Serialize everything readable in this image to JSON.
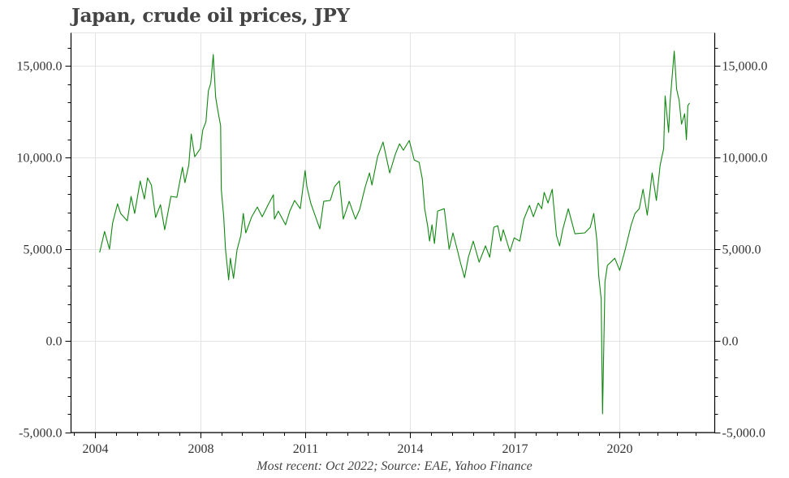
{
  "chart_data": {
    "type": "line",
    "title": "Japan, crude oil prices, JPY",
    "caption": "Most recent: Oct 2022; Source: EAE, Yahoo Finance",
    "xlabel": "",
    "ylabel": "",
    "xlim": [
      2004.3,
      2022.72
    ],
    "ylim": [
      -5000,
      16800
    ],
    "grid": true,
    "legend": "none",
    "line_color": "#118811",
    "x_ticks": [
      {
        "value": 2004.98,
        "label": "2004"
      },
      {
        "value": 2008.0,
        "label": "2008"
      },
      {
        "value": 2011.0,
        "label": "2011"
      },
      {
        "value": 2014.0,
        "label": "2014"
      },
      {
        "value": 2017.0,
        "label": "2017"
      },
      {
        "value": 2020.0,
        "label": "2020"
      }
    ],
    "y_ticks": [
      {
        "value": -5000,
        "label": "-5,000.0"
      },
      {
        "value": 0,
        "label": "0.0"
      },
      {
        "value": 5000,
        "label": "5,000.0"
      },
      {
        "value": 10000,
        "label": "10,000.0"
      },
      {
        "value": 15000,
        "label": "15,000.0"
      }
    ],
    "series": [
      {
        "name": "Crude oil price (JPY)",
        "x": [
          2005.12,
          2005.26,
          2005.4,
          2005.49,
          2005.63,
          2005.72,
          2005.91,
          2006.02,
          2006.12,
          2006.28,
          2006.4,
          2006.49,
          2006.6,
          2006.72,
          2006.86,
          2006.98,
          2007.16,
          2007.33,
          2007.49,
          2007.56,
          2007.67,
          2007.74,
          2007.84,
          2008.0,
          2008.07,
          2008.16,
          2008.23,
          2008.3,
          2008.37,
          2008.44,
          2008.51,
          2008.58,
          2008.6,
          2008.67,
          2008.72,
          2008.81,
          2008.86,
          2008.95,
          2009.05,
          2009.16,
          2009.23,
          2009.3,
          2009.47,
          2009.63,
          2009.77,
          2009.93,
          2010.09,
          2010.12,
          2010.23,
          2010.44,
          2010.56,
          2010.7,
          2010.86,
          2011.0,
          2011.05,
          2011.16,
          2011.42,
          2011.53,
          2011.72,
          2011.84,
          2011.98,
          2012.09,
          2012.26,
          2012.44,
          2012.56,
          2012.72,
          2012.84,
          2012.91,
          2013.07,
          2013.23,
          2013.42,
          2013.58,
          2013.7,
          2013.81,
          2013.98,
          2014.12,
          2014.26,
          2014.35,
          2014.42,
          2014.51,
          2014.56,
          2014.63,
          2014.7,
          2014.79,
          2014.98,
          2015.12,
          2015.23,
          2015.35,
          2015.44,
          2015.56,
          2015.67,
          2015.81,
          2015.98,
          2016.16,
          2016.28,
          2016.4,
          2016.51,
          2016.6,
          2016.67,
          2016.86,
          2016.98,
          2017.14,
          2017.26,
          2017.42,
          2017.53,
          2017.67,
          2017.77,
          2017.84,
          2017.95,
          2018.07,
          2018.19,
          2018.28,
          2018.37,
          2018.53,
          2018.72,
          2019.0,
          2019.16,
          2019.26,
          2019.35,
          2019.4,
          2019.47,
          2019.51,
          2019.58,
          2019.65,
          2019.86,
          2020.0,
          2020.16,
          2020.33,
          2020.44,
          2020.56,
          2020.67,
          2020.79,
          2020.93,
          2021.05,
          2021.16,
          2021.26,
          2021.3,
          2021.4,
          2021.44,
          2021.56,
          2021.63,
          2021.7,
          2021.77,
          2021.86,
          2021.91,
          2021.95,
          2022.0
        ],
        "values": [
          4820,
          5970,
          5000,
          6420,
          7480,
          6950,
          6550,
          7880,
          6950,
          8720,
          7740,
          8890,
          8500,
          6730,
          7430,
          6060,
          7880,
          7830,
          9470,
          8630,
          9600,
          11280,
          10040,
          10490,
          11500,
          11950,
          13630,
          14070,
          15620,
          13280,
          12480,
          11730,
          8270,
          6770,
          5000,
          3320,
          4510,
          3410,
          4960,
          5750,
          6950,
          5890,
          6770,
          7300,
          6770,
          7390,
          7970,
          6640,
          7080,
          6330,
          7080,
          7660,
          7210,
          9290,
          8410,
          7520,
          6110,
          7610,
          7660,
          8410,
          8720,
          6640,
          7610,
          6640,
          7170,
          8410,
          9160,
          8500,
          10040,
          10840,
          9160,
          10180,
          10750,
          10400,
          10930,
          9870,
          9740,
          8850,
          7210,
          6200,
          5440,
          6330,
          5310,
          7080,
          7210,
          5000,
          5890,
          5000,
          4290,
          3450,
          4560,
          5440,
          4290,
          5180,
          4560,
          6200,
          6280,
          5440,
          6060,
          4870,
          5620,
          5440,
          6640,
          7390,
          6770,
          7520,
          7210,
          8100,
          7520,
          8270,
          5750,
          5180,
          6060,
          7210,
          5840,
          5890,
          6200,
          6950,
          5440,
          3540,
          2300,
          -3980,
          3230,
          4120,
          4510,
          3850,
          5000,
          6330,
          6950,
          7210,
          8270,
          6860,
          9160,
          7660,
          9600,
          10490,
          13360,
          11370,
          12970,
          15800,
          13720,
          13140,
          11820,
          12390,
          10970,
          12830,
          12970
        ]
      }
    ]
  }
}
